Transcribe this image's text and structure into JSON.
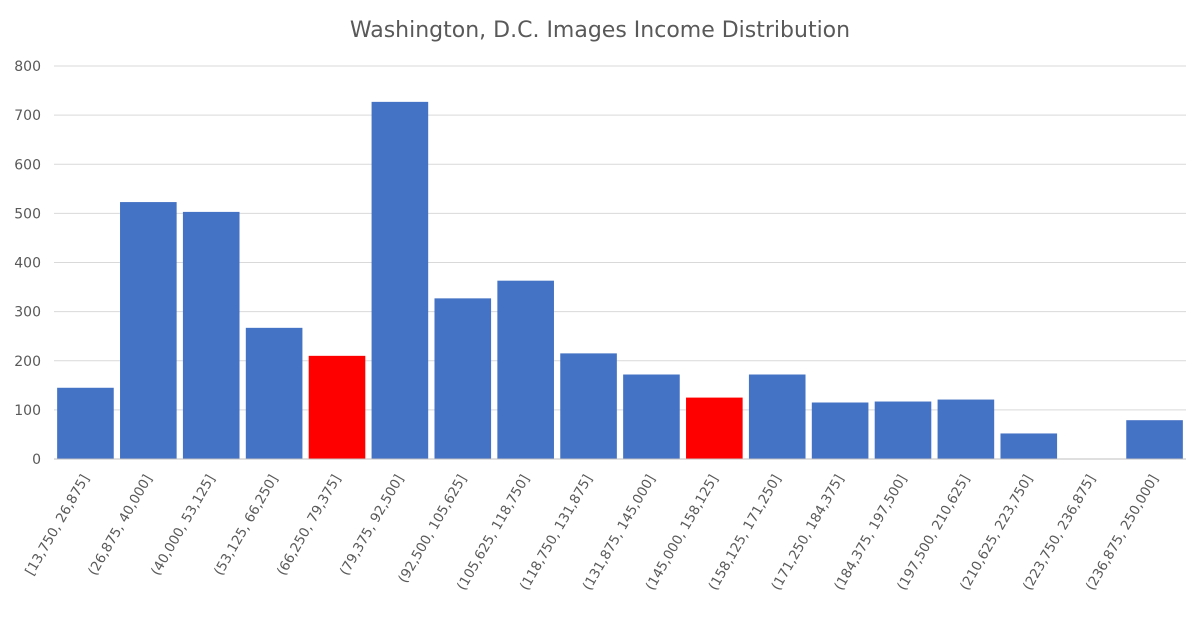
{
  "chart_data": {
    "type": "bar",
    "title": "Washington, D.C. Images Income Distribution",
    "xlabel": "",
    "ylabel": "",
    "ylim": [
      0,
      800
    ],
    "yticks": [
      0,
      100,
      200,
      300,
      400,
      500,
      600,
      700,
      800
    ],
    "grid": true,
    "legend": "none",
    "categories": [
      "[13,750, 26,875]",
      "(26,875, 40,000]",
      "(40,000, 53,125]",
      "(53,125, 66,250]",
      "(66,250, 79,375]",
      "(79,375, 92,500]",
      "(92,500, 105,625]",
      "(105,625, 118,750]",
      "(118,750, 131,875]",
      "(131,875, 145,000]",
      "(145,000, 158,125]",
      "(158,125, 171,250]",
      "(171,250, 184,375]",
      "(184,375, 197,500]",
      "(197,500, 210,625]",
      "(210,625, 223,750]",
      "(223,750, 236,875]",
      "(236,875, 250,000]"
    ],
    "values": [
      145,
      523,
      503,
      267,
      210,
      727,
      327,
      363,
      215,
      172,
      125,
      172,
      115,
      117,
      121,
      52,
      0,
      79
    ],
    "colors": {
      "default": "#4472c4",
      "highlight": "#ff0000"
    },
    "highlighted_indices": [
      4,
      10
    ]
  }
}
